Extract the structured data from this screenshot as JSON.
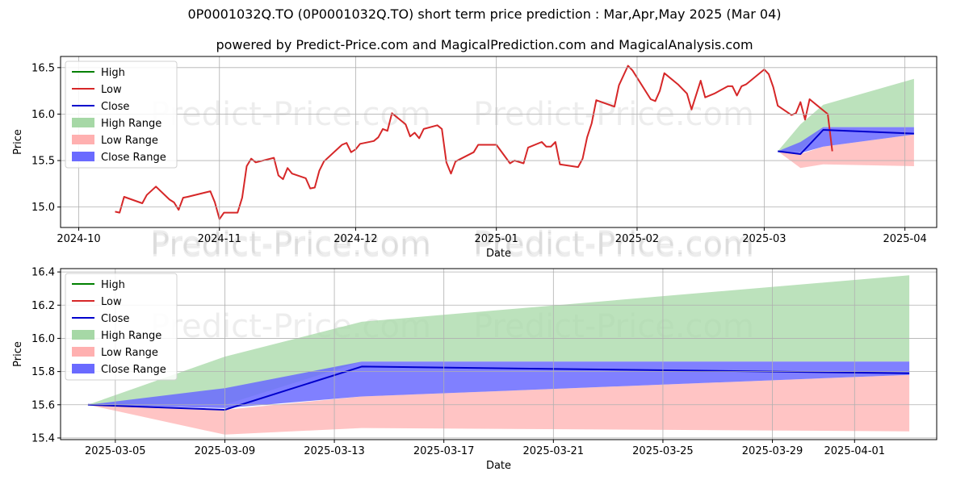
{
  "title": "0P0001032Q.TO (0P0001032Q.TO) short term price prediction : Mar,Apr,May 2025 (Mar 04)",
  "subtitle": "powered by Predict-Price.com and MagicalPrediction.com and MagicalAnalysis.com",
  "watermark": "Predict-Price.com",
  "colors": {
    "high": "#008000",
    "low": "#d62728",
    "close": "#0000cc",
    "high_range": "#a6d8a6",
    "low_range": "#ffb0b0",
    "close_range": "#6a6aff",
    "grid": "#b0b0b0"
  },
  "chart_data": [
    {
      "type": "line",
      "xlabel": "Date",
      "ylabel": "Price",
      "xlim": [
        "2024-09-27",
        "2025-04-08"
      ],
      "ylim": [
        14.78,
        16.62
      ],
      "grid": true,
      "legend_position": "top-left",
      "xticks": [
        {
          "date": "2024-10-01",
          "label": "2024-10"
        },
        {
          "date": "2024-11-01",
          "label": "2024-11"
        },
        {
          "date": "2024-12-01",
          "label": "2024-12"
        },
        {
          "date": "2025-01-01",
          "label": "2025-01"
        },
        {
          "date": "2025-02-01",
          "label": "2025-02"
        },
        {
          "date": "2025-03-01",
          "label": "2025-03"
        },
        {
          "date": "2025-04-01",
          "label": "2025-04"
        }
      ],
      "yticks": [
        15.0,
        15.5,
        16.0,
        16.5
      ],
      "legend": [
        "High",
        "Low",
        "Close",
        "High Range",
        "Low Range",
        "Close Range"
      ],
      "series": [
        {
          "name": "Low",
          "points": [
            [
              "2024-10-09",
              14.95
            ],
            [
              "2024-10-10",
              14.94
            ],
            [
              "2024-10-11",
              15.11
            ],
            [
              "2024-10-15",
              15.04
            ],
            [
              "2024-10-16",
              15.13
            ],
            [
              "2024-10-18",
              15.22
            ],
            [
              "2024-10-21",
              15.08
            ],
            [
              "2024-10-22",
              15.05
            ],
            [
              "2024-10-23",
              14.97
            ],
            [
              "2024-10-24",
              15.1
            ],
            [
              "2024-10-25",
              15.11
            ],
            [
              "2024-10-30",
              15.17
            ],
            [
              "2024-10-31",
              15.05
            ],
            [
              "2024-11-01",
              14.87
            ],
            [
              "2024-11-02",
              14.94
            ],
            [
              "2024-11-05",
              14.94
            ],
            [
              "2024-11-06",
              15.1
            ],
            [
              "2024-11-07",
              15.44
            ],
            [
              "2024-11-08",
              15.52
            ],
            [
              "2024-11-09",
              15.48
            ],
            [
              "2024-11-13",
              15.53
            ],
            [
              "2024-11-14",
              15.34
            ],
            [
              "2024-11-15",
              15.3
            ],
            [
              "2024-11-16",
              15.42
            ],
            [
              "2024-11-17",
              15.36
            ],
            [
              "2024-11-20",
              15.31
            ],
            [
              "2024-11-21",
              15.2
            ],
            [
              "2024-11-22",
              15.21
            ],
            [
              "2024-11-23",
              15.39
            ],
            [
              "2024-11-24",
              15.49
            ],
            [
              "2024-11-28",
              15.67
            ],
            [
              "2024-11-29",
              15.69
            ],
            [
              "2024-11-30",
              15.59
            ],
            [
              "2024-12-01",
              15.62
            ],
            [
              "2024-12-02",
              15.68
            ],
            [
              "2024-12-05",
              15.71
            ],
            [
              "2024-12-06",
              15.75
            ],
            [
              "2024-12-07",
              15.84
            ],
            [
              "2024-12-08",
              15.82
            ],
            [
              "2024-12-09",
              16.01
            ],
            [
              "2024-12-12",
              15.89
            ],
            [
              "2024-12-13",
              15.76
            ],
            [
              "2024-12-14",
              15.8
            ],
            [
              "2024-12-15",
              15.74
            ],
            [
              "2024-12-16",
              15.84
            ],
            [
              "2024-12-19",
              15.88
            ],
            [
              "2024-12-20",
              15.84
            ],
            [
              "2024-12-21",
              15.48
            ],
            [
              "2024-12-22",
              15.36
            ],
            [
              "2024-12-23",
              15.49
            ],
            [
              "2024-12-27",
              15.59
            ],
            [
              "2024-12-28",
              15.67
            ],
            [
              "2025-01-01",
              15.67
            ],
            [
              "2025-01-04",
              15.47
            ],
            [
              "2025-01-05",
              15.5
            ],
            [
              "2025-01-07",
              15.47
            ],
            [
              "2025-01-08",
              15.64
            ],
            [
              "2025-01-11",
              15.7
            ],
            [
              "2025-01-12",
              15.65
            ],
            [
              "2025-01-13",
              15.65
            ],
            [
              "2025-01-14",
              15.7
            ],
            [
              "2025-01-15",
              15.46
            ],
            [
              "2025-01-19",
              15.43
            ],
            [
              "2025-01-20",
              15.52
            ],
            [
              "2025-01-21",
              15.75
            ],
            [
              "2025-01-22",
              15.9
            ],
            [
              "2025-01-23",
              16.15
            ],
            [
              "2025-01-27",
              16.08
            ],
            [
              "2025-01-28",
              16.31
            ],
            [
              "2025-01-30",
              16.52
            ],
            [
              "2025-01-31",
              16.47
            ],
            [
              "2025-02-04",
              16.16
            ],
            [
              "2025-02-05",
              16.14
            ],
            [
              "2025-02-06",
              16.25
            ],
            [
              "2025-02-07",
              16.44
            ],
            [
              "2025-02-10",
              16.32
            ],
            [
              "2025-02-12",
              16.22
            ],
            [
              "2025-02-13",
              16.05
            ],
            [
              "2025-02-15",
              16.36
            ],
            [
              "2025-02-16",
              16.18
            ],
            [
              "2025-02-18",
              16.22
            ],
            [
              "2025-02-21",
              16.3
            ],
            [
              "2025-02-22",
              16.3
            ],
            [
              "2025-02-23",
              16.2
            ],
            [
              "2025-02-24",
              16.3
            ],
            [
              "2025-02-25",
              16.32
            ],
            [
              "2025-03-01",
              16.48
            ],
            [
              "2025-03-02",
              16.43
            ],
            [
              "2025-03-03",
              16.29
            ],
            [
              "2025-03-04",
              16.09
            ],
            [
              "2025-03-07",
              15.99
            ],
            [
              "2025-03-08",
              16.01
            ],
            [
              "2025-03-09",
              16.13
            ],
            [
              "2025-03-10",
              15.94
            ],
            [
              "2025-03-11",
              16.16
            ],
            [
              "2025-03-13",
              16.08
            ],
            [
              "2025-03-15",
              16.0
            ],
            [
              "2025-03-16",
              15.6
            ]
          ]
        },
        {
          "name": "Close",
          "points": [
            [
              "2025-03-04",
              15.6
            ],
            [
              "2025-03-09",
              15.57
            ],
            [
              "2025-03-14",
              15.83
            ],
            [
              "2025-04-03",
              15.79
            ]
          ]
        },
        {
          "name": "High Range",
          "band": [
            [
              "2025-03-04",
              15.6,
              15.6
            ],
            [
              "2025-03-09",
              15.6,
              15.89
            ],
            [
              "2025-03-14",
              15.86,
              16.1
            ],
            [
              "2025-04-03",
              15.86,
              16.38
            ]
          ]
        },
        {
          "name": "Low Range",
          "band": [
            [
              "2025-03-04",
              15.6,
              15.6
            ],
            [
              "2025-03-09",
              15.42,
              15.57
            ],
            [
              "2025-03-14",
              15.46,
              15.65
            ],
            [
              "2025-04-03",
              15.44,
              15.78
            ]
          ]
        },
        {
          "name": "Close Range",
          "band": [
            [
              "2025-03-04",
              15.6,
              15.6
            ],
            [
              "2025-03-09",
              15.58,
              15.7
            ],
            [
              "2025-03-14",
              15.65,
              15.86
            ],
            [
              "2025-04-03",
              15.78,
              15.86
            ]
          ]
        }
      ]
    },
    {
      "type": "line",
      "xlabel": "Date",
      "ylabel": "Price",
      "xlim": [
        "2025-03-03",
        "2025-04-04"
      ],
      "ylim": [
        15.39,
        16.42
      ],
      "grid": true,
      "legend_position": "top-left",
      "xticks": [
        {
          "date": "2025-03-05",
          "label": "2025-03-05"
        },
        {
          "date": "2025-03-09",
          "label": "2025-03-09"
        },
        {
          "date": "2025-03-13",
          "label": "2025-03-13"
        },
        {
          "date": "2025-03-17",
          "label": "2025-03-17"
        },
        {
          "date": "2025-03-21",
          "label": "2025-03-21"
        },
        {
          "date": "2025-03-25",
          "label": "2025-03-25"
        },
        {
          "date": "2025-03-29",
          "label": "2025-03-29"
        },
        {
          "date": "2025-04-01",
          "label": "2025-04-01"
        }
      ],
      "yticks": [
        15.4,
        15.6,
        15.8,
        16.0,
        16.2,
        16.4
      ],
      "legend": [
        "High",
        "Low",
        "Close",
        "High Range",
        "Low Range",
        "Close Range"
      ],
      "series": [
        {
          "name": "Close",
          "points": [
            [
              "2025-03-04",
              15.6
            ],
            [
              "2025-03-09",
              15.57
            ],
            [
              "2025-03-14",
              15.83
            ],
            [
              "2025-04-03",
              15.79
            ]
          ]
        },
        {
          "name": "High Range",
          "band": [
            [
              "2025-03-04",
              15.6,
              15.6
            ],
            [
              "2025-03-09",
              15.6,
              15.89
            ],
            [
              "2025-03-14",
              15.86,
              16.1
            ],
            [
              "2025-04-03",
              15.86,
              16.38
            ]
          ]
        },
        {
          "name": "Low Range",
          "band": [
            [
              "2025-03-04",
              15.6,
              15.6
            ],
            [
              "2025-03-09",
              15.42,
              15.57
            ],
            [
              "2025-03-14",
              15.46,
              15.65
            ],
            [
              "2025-04-03",
              15.44,
              15.78
            ]
          ]
        },
        {
          "name": "Close Range",
          "band": [
            [
              "2025-03-04",
              15.6,
              15.6
            ],
            [
              "2025-03-09",
              15.58,
              15.7
            ],
            [
              "2025-03-14",
              15.65,
              15.86
            ],
            [
              "2025-04-03",
              15.78,
              15.86
            ]
          ]
        }
      ]
    }
  ]
}
